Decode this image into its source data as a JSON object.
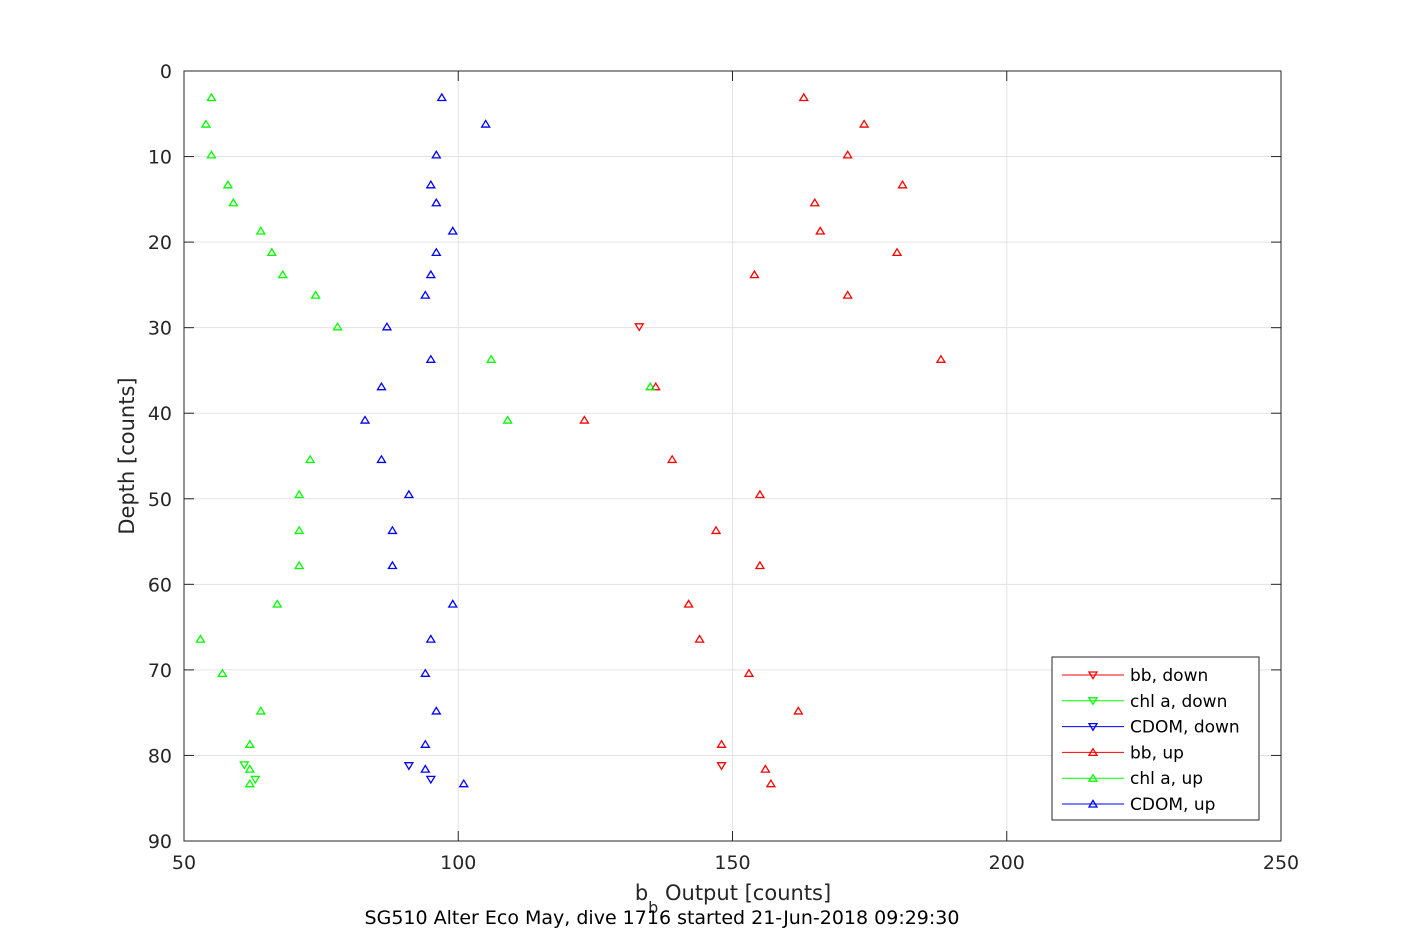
{
  "chart_data": {
    "type": "scatter",
    "title": "SG510 Alter Eco May, dive 1716 started 21-Jun-2018 09:29:30",
    "xlabel": {
      "base": "b",
      "sub": "b",
      "rest": " Output [counts]"
    },
    "ylabel": "Depth [counts]",
    "xlim": [
      50,
      250
    ],
    "ylim": [
      0,
      90
    ],
    "y_reversed": true,
    "xticks": [
      50,
      100,
      150,
      200,
      250
    ],
    "yticks": [
      0,
      10,
      20,
      30,
      40,
      50,
      60,
      70,
      80,
      90
    ],
    "grid": true,
    "legend_position": "bottom-right",
    "series": [
      {
        "name": "bb, down",
        "color": "#ff0000",
        "marker": "triangle-down",
        "points": [
          [
            133,
            29.9
          ],
          [
            148,
            81.2
          ]
        ]
      },
      {
        "name": "chl a, down",
        "color": "#00ff00",
        "marker": "triangle-down",
        "points": [
          [
            61,
            81.1
          ],
          [
            63,
            82.8
          ]
        ]
      },
      {
        "name": "CDOM, down",
        "color": "#0000ff",
        "marker": "triangle-down",
        "points": [
          [
            91,
            81.2
          ],
          [
            95,
            82.8
          ]
        ]
      },
      {
        "name": "bb, up",
        "color": "#ff0000",
        "marker": "triangle-up",
        "points": [
          [
            163,
            3.1
          ],
          [
            174,
            6.2
          ],
          [
            171,
            9.8
          ],
          [
            181,
            13.3
          ],
          [
            165,
            15.4
          ],
          [
            166,
            18.7
          ],
          [
            180,
            21.2
          ],
          [
            154,
            23.8
          ],
          [
            171,
            26.2
          ],
          [
            188,
            33.7
          ],
          [
            136,
            36.9
          ],
          [
            123,
            40.8
          ],
          [
            139,
            45.4
          ],
          [
            155,
            49.5
          ],
          [
            147,
            53.7
          ],
          [
            155,
            57.8
          ],
          [
            142,
            62.3
          ],
          [
            144,
            66.4
          ],
          [
            153,
            70.4
          ],
          [
            162,
            74.8
          ],
          [
            148,
            78.7
          ],
          [
            156,
            81.6
          ],
          [
            157,
            83.3
          ]
        ]
      },
      {
        "name": "chl a, up",
        "color": "#00ff00",
        "marker": "triangle-up",
        "points": [
          [
            55,
            3.1
          ],
          [
            54,
            6.2
          ],
          [
            55,
            9.8
          ],
          [
            58,
            13.3
          ],
          [
            59,
            15.4
          ],
          [
            64,
            18.7
          ],
          [
            66,
            21.2
          ],
          [
            68,
            23.8
          ],
          [
            74,
            26.2
          ],
          [
            78,
            29.9
          ],
          [
            106,
            33.7
          ],
          [
            135,
            36.9
          ],
          [
            109,
            40.8
          ],
          [
            73,
            45.4
          ],
          [
            71,
            49.5
          ],
          [
            71,
            53.7
          ],
          [
            71,
            57.8
          ],
          [
            67,
            62.3
          ],
          [
            53,
            66.4
          ],
          [
            57,
            70.4
          ],
          [
            64,
            74.8
          ],
          [
            62,
            78.7
          ],
          [
            62,
            81.6
          ],
          [
            62,
            83.3
          ]
        ]
      },
      {
        "name": "CDOM, up",
        "color": "#0000ff",
        "marker": "triangle-up",
        "points": [
          [
            97,
            3.1
          ],
          [
            105,
            6.2
          ],
          [
            96,
            9.8
          ],
          [
            95,
            13.3
          ],
          [
            96,
            15.4
          ],
          [
            99,
            18.7
          ],
          [
            96,
            21.2
          ],
          [
            95,
            23.8
          ],
          [
            94,
            26.2
          ],
          [
            87,
            29.9
          ],
          [
            95,
            33.7
          ],
          [
            86,
            36.9
          ],
          [
            83,
            40.8
          ],
          [
            86,
            45.4
          ],
          [
            91,
            49.5
          ],
          [
            88,
            53.7
          ],
          [
            88,
            57.8
          ],
          [
            99,
            62.3
          ],
          [
            95,
            66.4
          ],
          [
            94,
            70.4
          ],
          [
            96,
            74.8
          ],
          [
            94,
            78.7
          ],
          [
            94,
            81.6
          ],
          [
            101,
            83.3
          ]
        ]
      }
    ]
  }
}
